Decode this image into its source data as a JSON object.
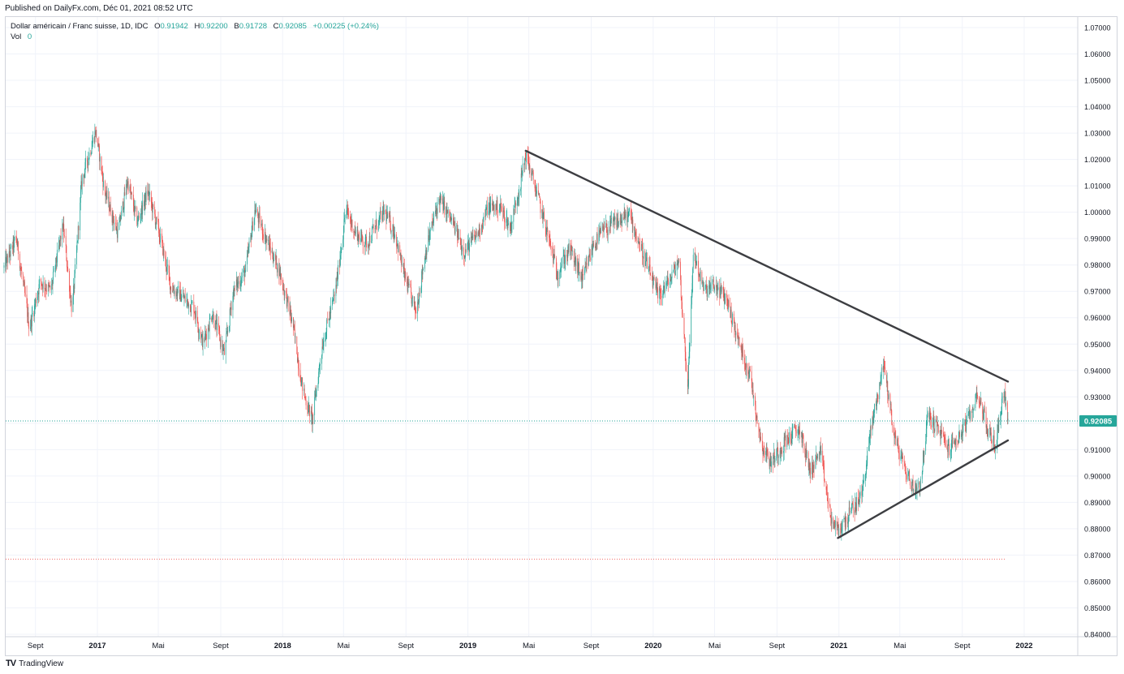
{
  "published": "Published on DailyFx.com, Déc 01, 2021 08:52 UTC",
  "legend": {
    "symbol": "Dollar américain / Franc suisse, 1D, IDC",
    "open_label": "O",
    "open": "0.91942",
    "high_label": "H",
    "high": "0.92200",
    "low_label": "B",
    "low": "0.91728",
    "close_label": "C",
    "close": "0.92085",
    "change": "+0.00225 (+0.24%)",
    "vol_label": "Vol",
    "vol": "0"
  },
  "footer": {
    "brand": "TradingView"
  },
  "colors": {
    "up": "#26a69a",
    "down": "#ef5350",
    "trendline": "#3d3e42",
    "grid": "#f0f3fa",
    "axis_text": "#131722",
    "last_price_bg": "#26a69a",
    "support_line": "#ef5350"
  },
  "chart_data": {
    "type": "candlestick",
    "ylim": [
      0.84,
      1.07
    ],
    "y_ticks": [
      "1.07000",
      "1.06000",
      "1.05000",
      "1.04000",
      "1.03000",
      "1.02000",
      "1.01000",
      "1.00000",
      "0.99000",
      "0.98000",
      "0.97000",
      "0.96000",
      "0.95000",
      "0.94000",
      "0.93000",
      "0.92000",
      "0.91000",
      "0.90000",
      "0.89000",
      "0.88000",
      "0.87000",
      "0.86000",
      "0.85000",
      "0.84000"
    ],
    "x_ticks": [
      {
        "label": "Sept",
        "date": "2016-09-01"
      },
      {
        "label": "2017",
        "date": "2017-01-01",
        "bold": true
      },
      {
        "label": "Mai",
        "date": "2017-05-01"
      },
      {
        "label": "Sept",
        "date": "2017-09-01"
      },
      {
        "label": "2018",
        "date": "2018-01-01",
        "bold": true
      },
      {
        "label": "Mai",
        "date": "2018-05-01"
      },
      {
        "label": "Sept",
        "date": "2018-09-01"
      },
      {
        "label": "2019",
        "date": "2019-01-01",
        "bold": true
      },
      {
        "label": "Mai",
        "date": "2019-05-01"
      },
      {
        "label": "Sept",
        "date": "2019-09-01"
      },
      {
        "label": "2020",
        "date": "2020-01-01",
        "bold": true
      },
      {
        "label": "Mai",
        "date": "2020-05-01"
      },
      {
        "label": "Sept",
        "date": "2020-09-01"
      },
      {
        "label": "2021",
        "date": "2021-01-01",
        "bold": true
      },
      {
        "label": "Mai",
        "date": "2021-05-01"
      },
      {
        "label": "Sept",
        "date": "2021-09-01"
      },
      {
        "label": "2022",
        "date": "2022-01-01",
        "bold": true
      }
    ],
    "last_price": 0.92085,
    "last_price_label": "0.92085",
    "horizontal_line": 0.8685,
    "trendlines": [
      {
        "name": "resistance",
        "from": {
          "date": "2019-04-25",
          "y": 1.0233
        },
        "to": {
          "date": "2021-11-30",
          "y": 0.9358
        }
      },
      {
        "name": "support",
        "from": {
          "date": "2020-12-30",
          "y": 0.8765
        },
        "to": {
          "date": "2021-11-30",
          "y": 0.9135
        }
      }
    ],
    "price_path": [
      [
        "2016-07-01",
        0.979
      ],
      [
        "2016-07-25",
        0.99
      ],
      [
        "2016-08-20",
        0.956
      ],
      [
        "2016-09-10",
        0.974
      ],
      [
        "2016-10-01",
        0.97
      ],
      [
        "2016-10-25",
        0.995
      ],
      [
        "2016-11-12",
        0.962
      ],
      [
        "2016-12-01",
        1.012
      ],
      [
        "2016-12-28",
        1.031
      ],
      [
        "2017-01-15",
        1.008
      ],
      [
        "2017-02-10",
        0.992
      ],
      [
        "2017-03-01",
        1.012
      ],
      [
        "2017-03-20",
        0.996
      ],
      [
        "2017-04-10",
        1.008
      ],
      [
        "2017-05-05",
        0.99
      ],
      [
        "2017-05-25",
        0.972
      ],
      [
        "2017-06-15",
        0.968
      ],
      [
        "2017-07-10",
        0.964
      ],
      [
        "2017-07-28",
        0.95
      ],
      [
        "2017-08-15",
        0.962
      ],
      [
        "2017-09-08",
        0.946
      ],
      [
        "2017-09-25",
        0.97
      ],
      [
        "2017-10-20",
        0.978
      ],
      [
        "2017-11-07",
        1.001
      ],
      [
        "2017-12-05",
        0.987
      ],
      [
        "2017-12-25",
        0.978
      ],
      [
        "2018-01-20",
        0.958
      ],
      [
        "2018-02-10",
        0.932
      ],
      [
        "2018-02-28",
        0.921
      ],
      [
        "2018-03-20",
        0.95
      ],
      [
        "2018-04-15",
        0.97
      ],
      [
        "2018-05-05",
        1.001
      ],
      [
        "2018-05-25",
        0.992
      ],
      [
        "2018-06-15",
        0.988
      ],
      [
        "2018-07-01",
        0.994
      ],
      [
        "2018-07-20",
        1.0
      ],
      [
        "2018-08-10",
        0.992
      ],
      [
        "2018-08-28",
        0.976
      ],
      [
        "2018-09-20",
        0.962
      ],
      [
        "2018-10-10",
        0.986
      ],
      [
        "2018-11-05",
        1.005
      ],
      [
        "2018-12-01",
        0.996
      ],
      [
        "2018-12-25",
        0.985
      ],
      [
        "2019-01-20",
        0.992
      ],
      [
        "2019-02-10",
        1.002
      ],
      [
        "2019-03-05",
        1.002
      ],
      [
        "2019-03-25",
        0.994
      ],
      [
        "2019-04-15",
        1.012
      ],
      [
        "2019-04-25",
        1.022
      ],
      [
        "2019-05-15",
        1.008
      ],
      [
        "2019-06-05",
        0.993
      ],
      [
        "2019-06-25",
        0.977
      ],
      [
        "2019-07-20",
        0.986
      ],
      [
        "2019-08-15",
        0.974
      ],
      [
        "2019-09-05",
        0.988
      ],
      [
        "2019-09-25",
        0.993
      ],
      [
        "2019-10-20",
        0.996
      ],
      [
        "2019-11-15",
        0.999
      ],
      [
        "2019-12-10",
        0.985
      ],
      [
        "2020-01-10",
        0.968
      ],
      [
        "2020-02-05",
        0.975
      ],
      [
        "2020-02-20",
        0.982
      ],
      [
        "2020-03-09",
        0.933
      ],
      [
        "2020-03-20",
        0.985
      ],
      [
        "2020-04-10",
        0.97
      ],
      [
        "2020-05-01",
        0.972
      ],
      [
        "2020-05-25",
        0.967
      ],
      [
        "2020-06-15",
        0.952
      ],
      [
        "2020-07-10",
        0.938
      ],
      [
        "2020-08-01",
        0.912
      ],
      [
        "2020-08-20",
        0.905
      ],
      [
        "2020-09-15",
        0.913
      ],
      [
        "2020-10-15",
        0.918
      ],
      [
        "2020-11-05",
        0.902
      ],
      [
        "2020-11-25",
        0.909
      ],
      [
        "2020-12-15",
        0.884
      ],
      [
        "2020-12-30",
        0.879
      ],
      [
        "2021-01-20",
        0.885
      ],
      [
        "2021-02-15",
        0.893
      ],
      [
        "2021-03-05",
        0.918
      ],
      [
        "2021-03-30",
        0.943
      ],
      [
        "2021-04-20",
        0.915
      ],
      [
        "2021-05-10",
        0.903
      ],
      [
        "2021-05-28",
        0.895
      ],
      [
        "2021-06-10",
        0.897
      ],
      [
        "2021-06-25",
        0.923
      ],
      [
        "2021-07-15",
        0.918
      ],
      [
        "2021-08-05",
        0.91
      ],
      [
        "2021-08-25",
        0.915
      ],
      [
        "2021-09-15",
        0.922
      ],
      [
        "2021-10-01",
        0.932
      ],
      [
        "2021-10-20",
        0.918
      ],
      [
        "2021-11-05",
        0.911
      ],
      [
        "2021-11-22",
        0.933
      ],
      [
        "2021-11-30",
        0.9208
      ]
    ]
  }
}
